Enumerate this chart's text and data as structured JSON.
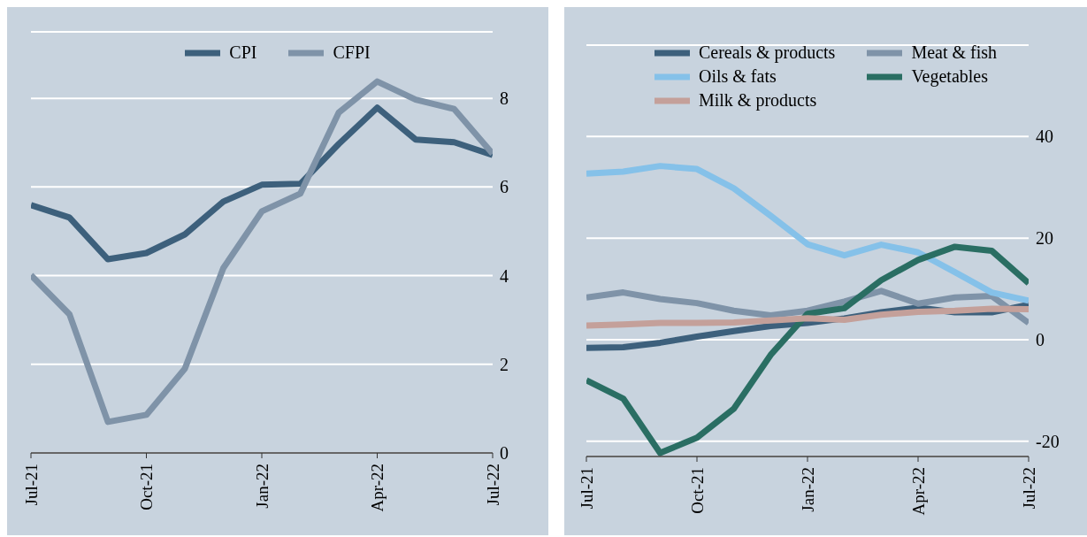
{
  "chart_data": [
    {
      "type": "line",
      "categories": [
        "Jul-21",
        null,
        null,
        "Oct-21",
        null,
        null,
        "Jan-22",
        null,
        null,
        "Apr-22",
        null,
        null,
        "Jul-22"
      ],
      "series": [
        {
          "name": "CPI",
          "color": "#3d607c",
          "values": [
            5.59,
            5.31,
            4.37,
            4.51,
            4.93,
            5.67,
            6.05,
            6.07,
            6.97,
            7.79,
            7.07,
            7.01,
            6.72
          ]
        },
        {
          "name": "CFPI",
          "color": "#7f93a8",
          "values": [
            4.01,
            3.13,
            0.7,
            0.86,
            1.9,
            4.17,
            5.45,
            5.85,
            7.68,
            8.38,
            7.97,
            7.76,
            6.75
          ]
        }
      ],
      "ylim": [
        0,
        9.5
      ],
      "yticks": [
        0,
        2,
        4,
        6,
        8
      ],
      "grid": "y",
      "legend": "top"
    },
    {
      "type": "line",
      "categories": [
        "Jul-21",
        null,
        null,
        "Oct-21",
        null,
        null,
        "Jan-22",
        null,
        null,
        "Apr-22",
        null,
        null,
        "Jul-22"
      ],
      "series": [
        {
          "name": "Cereals & products",
          "color": "#3d607c",
          "values": [
            -1.6,
            -1.5,
            -0.6,
            0.6,
            1.7,
            2.7,
            3.3,
            4.2,
            5.4,
            6.3,
            5.4,
            5.4,
            6.9
          ]
        },
        {
          "name": "Meat & fish",
          "color": "#7f93a8",
          "values": [
            8.3,
            9.3,
            8.0,
            7.2,
            5.7,
            4.8,
            5.7,
            7.5,
            9.6,
            7.1,
            8.3,
            8.6,
            3.3
          ]
        },
        {
          "name": "Oils & fats",
          "color": "#85c1e9",
          "values": [
            32.7,
            33.1,
            34.2,
            33.6,
            29.8,
            24.4,
            18.8,
            16.6,
            18.7,
            17.2,
            13.3,
            9.3,
            7.7
          ]
        },
        {
          "name": "Vegetables",
          "color": "#2a6e63",
          "values": [
            -8.0,
            -11.6,
            -22.3,
            -19.3,
            -13.6,
            -3.0,
            5.1,
            6.2,
            11.7,
            15.7,
            18.3,
            17.5,
            11.1
          ]
        },
        {
          "name": "Milk & products",
          "color": "#c4a09a",
          "values": [
            2.8,
            3.0,
            3.3,
            3.3,
            3.4,
            3.8,
            4.2,
            3.9,
            4.9,
            5.5,
            5.7,
            6.1,
            6.0
          ]
        }
      ],
      "ylim": [
        -23,
        58
      ],
      "yticks": [
        -20,
        0,
        20,
        40
      ],
      "grid": "y",
      "legend": "top"
    }
  ]
}
